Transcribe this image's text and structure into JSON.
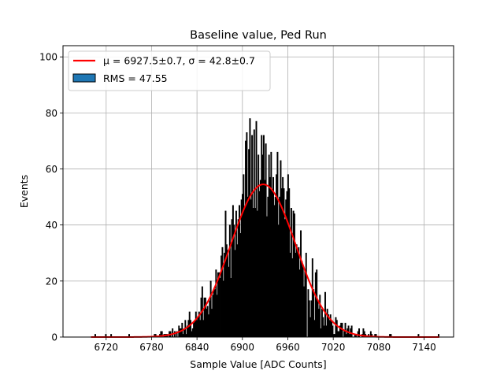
{
  "chart_data": {
    "type": "bar",
    "title": "Baseline value, Ped Run",
    "xlabel": "Sample Value [ADC Counts]",
    "ylabel": "Events",
    "xlim": [
      6663,
      7179
    ],
    "ylim": [
      0,
      104
    ],
    "xticks": [
      6720,
      6780,
      6840,
      6900,
      6960,
      7020,
      7080,
      7140
    ],
    "yticks": [
      0,
      20,
      40,
      60,
      80,
      100
    ],
    "grid": true,
    "legend_position": "top-left",
    "legend": [
      {
        "label": "μ = 6927.5±0.7, σ = 42.8±0.7",
        "kind": "line",
        "color": "#ff0000"
      },
      {
        "label": "RMS = 47.55",
        "kind": "patch",
        "color": "#1f77b4"
      }
    ],
    "histogram": {
      "bin_width": 1.4,
      "edge_color": "#000000",
      "fill_color": "#1f77b4",
      "x_start": 6700,
      "x_end": 7165,
      "peak_values": [
        {
          "x": 6904,
          "y": 70
        },
        {
          "x": 6906,
          "y": 73
        },
        {
          "x": 6908,
          "y": 76
        },
        {
          "x": 6910,
          "y": 78
        },
        {
          "x": 6913,
          "y": 72
        },
        {
          "x": 6916,
          "y": 74
        },
        {
          "x": 6918,
          "y": 77
        },
        {
          "x": 6922,
          "y": 70
        },
        {
          "x": 6925,
          "y": 72
        },
        {
          "x": 6928,
          "y": 72
        },
        {
          "x": 6931,
          "y": 69
        },
        {
          "x": 6935,
          "y": 65
        },
        {
          "x": 6938,
          "y": 66
        },
        {
          "x": 6943,
          "y": 73
        },
        {
          "x": 6946,
          "y": 66
        }
      ]
    },
    "fit": {
      "type": "gaussian",
      "amplitude": 54.5,
      "mu": 6927.5,
      "sigma": 42.8,
      "x_range": [
        6700,
        7160
      ],
      "color": "#ff0000"
    }
  }
}
